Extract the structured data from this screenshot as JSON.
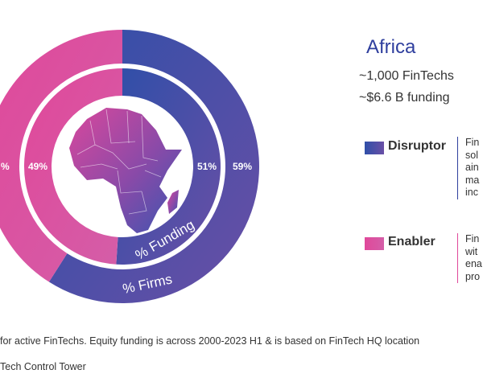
{
  "chart_data": {
    "type": "donut",
    "series": [
      {
        "name": "% Firms",
        "values": [
          {
            "label": "Disruptor",
            "value": 59
          },
          {
            "label": "Enabler",
            "value": 41
          }
        ],
        "value_labels": [
          "59%",
          ""
        ]
      },
      {
        "name": "% Funding",
        "values": [
          {
            "label": "Disruptor",
            "value": 51
          },
          {
            "label": "Enabler",
            "value": 49
          }
        ],
        "value_labels": [
          "51%",
          "49%"
        ]
      }
    ],
    "colors": {
      "Disruptor": "#3650a8",
      "Enabler": "#e0489a",
      "Disruptor_mid": "#6a4fa6"
    },
    "center_image": "africa-map-icon",
    "left_edge_label": "%"
  },
  "region": {
    "title": "Africa",
    "fintechs": "~1,000 FinTechs",
    "funding": "~$6.6 B funding"
  },
  "legend": {
    "disruptor": {
      "label": "Disruptor",
      "lines": [
        "Fin",
        "sol",
        "ain",
        "ma",
        "inc"
      ]
    },
    "enabler": {
      "label": "Enabler",
      "lines": [
        "Fin",
        "wit",
        "ena",
        "pro"
      ]
    }
  },
  "footnotes": {
    "line1": "for active FinTechs. Equity funding is across 2000-2023 H1 & is based on FinTech HQ location",
    "line2": "Tech Control Tower"
  }
}
